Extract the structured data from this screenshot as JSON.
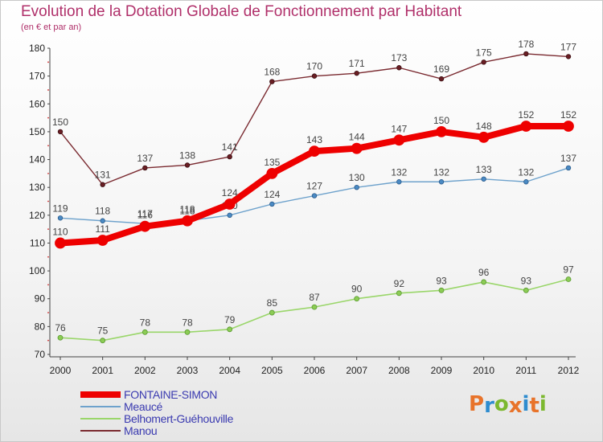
{
  "title": "Evolution de la Dotation Globale de Fonctionnement par Habitant",
  "subtitle": "(en € et par an)",
  "logo_text": "Proxiti",
  "logo_colors": [
    "#e8732a",
    "#2e8ccf",
    "#7cb82f",
    "#e8732a",
    "#2e8ccf",
    "#e8732a",
    "#7cb82f"
  ],
  "chart_data": {
    "type": "line",
    "title": "Evolution de la Dotation Globale de Fonctionnement par Habitant",
    "subtitle": "(en € et par an)",
    "xlabel": "",
    "ylabel": "",
    "ylim": [
      70,
      180
    ],
    "yticks": [
      70,
      80,
      90,
      100,
      110,
      120,
      130,
      140,
      150,
      160,
      170,
      180
    ],
    "grid": false,
    "legend_position": "bottom-left",
    "x": [
      "2000",
      "2001",
      "2002",
      "2003",
      "2004",
      "2005",
      "2006",
      "2007",
      "2008",
      "2009",
      "2010",
      "2011",
      "2012"
    ],
    "series": [
      {
        "name": "Manou",
        "color": "#7a2a30",
        "values": [
          150,
          131,
          137,
          138,
          141,
          168,
          170,
          171,
          173,
          169,
          175,
          178,
          177
        ]
      },
      {
        "name": "Belhomert-Guéhouville",
        "color": "#9ad66a",
        "values": [
          76,
          75,
          78,
          78,
          79,
          85,
          87,
          90,
          92,
          93,
          96,
          93,
          97
        ]
      },
      {
        "name": "Meaucé",
        "color": "#6ea2cc",
        "values": [
          119,
          118,
          117,
          118,
          120,
          124,
          127,
          130,
          132,
          132,
          133,
          132,
          137
        ]
      },
      {
        "name": "FONTAINE-SIMON",
        "color": "#ee0000",
        "values": [
          110,
          111,
          116,
          118,
          124,
          135,
          143,
          144,
          147,
          150,
          148,
          152,
          152
        ]
      }
    ]
  },
  "legend": [
    {
      "name": "FONTAINE-SIMON",
      "color": "#ee0000",
      "label_color": "#3a3ab0"
    },
    {
      "name": "Meaucé",
      "color": "#6ea2cc",
      "label_color": "#3a3ab0"
    },
    {
      "name": "Belhomert-Guéhouville",
      "color": "#9ad66a",
      "label_color": "#3a3ab0"
    },
    {
      "name": "Manou",
      "color": "#7a2a30",
      "label_color": "#3a3ab0"
    }
  ]
}
